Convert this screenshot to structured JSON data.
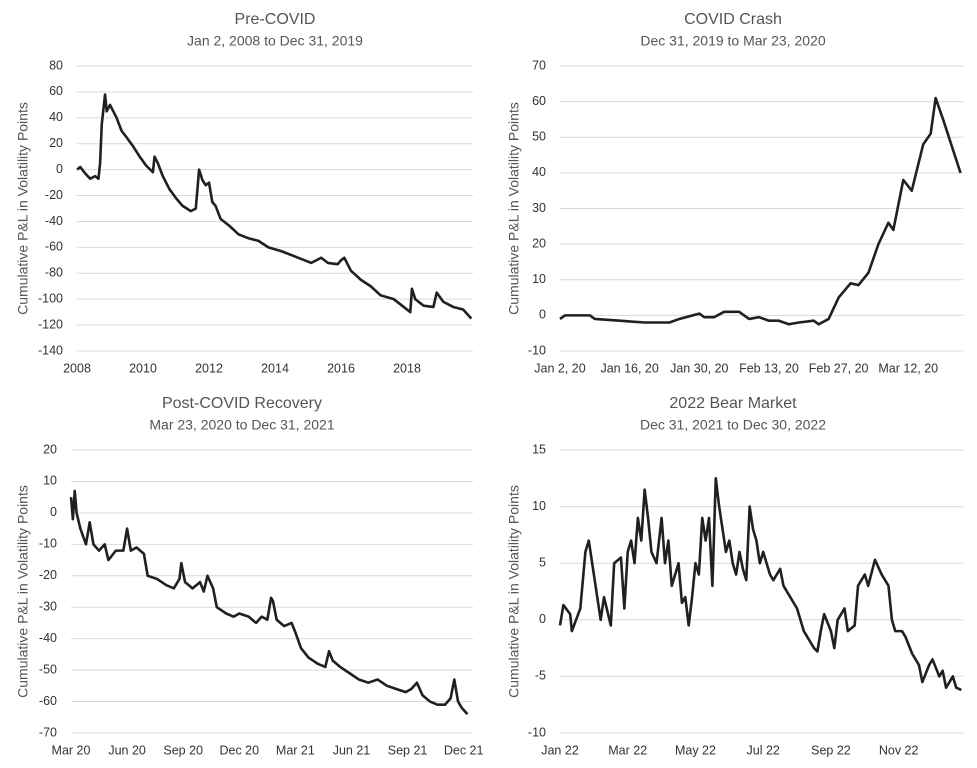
{
  "chart_data": [
    {
      "type": "line",
      "title": "Pre-COVID",
      "subtitle": "Jan 2, 2008 to Dec 31, 2019",
      "y_label": "Cumulative P&L in Volatility Points",
      "color": "#231f20",
      "grid": true,
      "xlim": [
        2008,
        2020
      ],
      "xticks": [
        2008,
        2010,
        2012,
        2014,
        2016,
        2018
      ],
      "ylim": [
        -140,
        80
      ],
      "yticks": [
        -140,
        -120,
        -100,
        -80,
        -60,
        -40,
        -20,
        0,
        20,
        40,
        60,
        80
      ],
      "x": [
        2008.0,
        2008.1,
        2008.25,
        2008.4,
        2008.55,
        2008.65,
        2008.7,
        2008.75,
        2008.85,
        2008.9,
        2009.0,
        2009.1,
        2009.2,
        2009.35,
        2009.5,
        2009.7,
        2009.9,
        2010.1,
        2010.3,
        2010.35,
        2010.45,
        2010.6,
        2010.8,
        2011.0,
        2011.2,
        2011.45,
        2011.6,
        2011.7,
        2011.8,
        2011.9,
        2012.0,
        2012.1,
        2012.2,
        2012.35,
        2012.6,
        2012.9,
        2013.2,
        2013.5,
        2013.8,
        2014.2,
        2014.6,
        2014.9,
        2015.1,
        2015.4,
        2015.6,
        2015.9,
        2016.0,
        2016.1,
        2016.3,
        2016.6,
        2016.9,
        2017.2,
        2017.6,
        2017.9,
        2018.1,
        2018.15,
        2018.25,
        2018.5,
        2018.8,
        2018.9,
        2019.1,
        2019.4,
        2019.7,
        2019.95
      ],
      "values": [
        0,
        2,
        -3,
        -7,
        -5,
        -7,
        5,
        35,
        58,
        45,
        50,
        45,
        40,
        30,
        25,
        18,
        10,
        3,
        -2,
        10,
        5,
        -5,
        -15,
        -22,
        -28,
        -32,
        -30,
        0,
        -8,
        -12,
        -10,
        -25,
        -28,
        -38,
        -43,
        -50,
        -53,
        -55,
        -60,
        -63,
        -67,
        -70,
        -72,
        -68,
        -72,
        -73,
        -70,
        -68,
        -78,
        -85,
        -90,
        -97,
        -100,
        -106,
        -110,
        -92,
        -100,
        -105,
        -106,
        -95,
        -102,
        -106,
        -108,
        -115
      ]
    },
    {
      "type": "line",
      "title": "COVID Crash",
      "subtitle": "Dec 31, 2019 to Mar 23, 2020",
      "y_label": "Cumulative P&L in Volatility Points",
      "color": "#231f20",
      "grid": true,
      "xlim": [
        0,
        81
      ],
      "xticks": [
        {
          "value": 0,
          "label": "Jan 2, 20"
        },
        {
          "value": 14,
          "label": "Jan 16, 20"
        },
        {
          "value": 28,
          "label": "Jan 30, 20"
        },
        {
          "value": 42,
          "label": "Feb 13, 20"
        },
        {
          "value": 56,
          "label": "Feb 27, 20"
        },
        {
          "value": 70,
          "label": "Mar 12, 20"
        }
      ],
      "ylim": [
        -10,
        70
      ],
      "yticks": [
        -10,
        0,
        10,
        20,
        30,
        40,
        50,
        60,
        70
      ],
      "x": [
        0,
        1,
        6,
        7,
        12,
        17,
        22,
        24,
        28,
        29,
        31,
        33,
        36,
        38,
        40,
        42,
        44,
        46,
        48,
        51,
        52,
        54,
        56,
        58.4,
        60,
        62,
        64,
        66,
        67,
        69,
        70.7,
        73,
        74.5,
        75.5,
        77,
        80.5
      ],
      "values": [
        -1,
        0,
        0,
        -1,
        -1.5,
        -2,
        -2,
        -1,
        0.5,
        -0.5,
        -0.5,
        1,
        1,
        -1,
        -0.5,
        -1.5,
        -1.5,
        -2.5,
        -2,
        -1.5,
        -2.5,
        -1,
        5,
        9,
        8.5,
        12,
        20,
        26,
        24,
        38,
        35,
        48,
        51,
        61,
        55,
        40
      ]
    },
    {
      "type": "line",
      "title": "Post-COVID Recovery",
      "subtitle": "Mar 23, 2020 to Dec 31, 2021",
      "y_label": "Cumulative P&L in Volatility Points",
      "color": "#231f20",
      "grid": true,
      "xlim": [
        0,
        21.5
      ],
      "xticks": [
        {
          "value": 0,
          "label": "Mar 20"
        },
        {
          "value": 3,
          "label": "Jun 20"
        },
        {
          "value": 6,
          "label": "Sep 20"
        },
        {
          "value": 9,
          "label": "Dec 20"
        },
        {
          "value": 12,
          "label": "Mar 21"
        },
        {
          "value": 15,
          "label": "Jun 21"
        },
        {
          "value": 18,
          "label": "Sep 21"
        },
        {
          "value": 21,
          "label": "Dec 21"
        }
      ],
      "ylim": [
        -70,
        20
      ],
      "yticks": [
        -70,
        -60,
        -50,
        -40,
        -30,
        -20,
        -10,
        0,
        10,
        20
      ],
      "x": [
        0,
        0.1,
        0.2,
        0.3,
        0.5,
        0.8,
        1.0,
        1.2,
        1.5,
        1.8,
        2.0,
        2.4,
        2.8,
        3.0,
        3.2,
        3.5,
        3.9,
        4.1,
        4.6,
        5.1,
        5.5,
        5.8,
        5.9,
        6.1,
        6.5,
        6.9,
        7.1,
        7.3,
        7.6,
        7.8,
        8.3,
        8.7,
        9.0,
        9.5,
        9.9,
        10.2,
        10.5,
        10.7,
        10.8,
        11.0,
        11.4,
        11.8,
        12.0,
        12.3,
        12.7,
        13.2,
        13.6,
        13.8,
        14.0,
        14.4,
        14.9,
        15.4,
        15.9,
        16.4,
        16.9,
        17.4,
        17.9,
        18.2,
        18.5,
        18.8,
        19.2,
        19.6,
        20.0,
        20.3,
        20.5,
        20.7,
        20.9,
        21.2
      ],
      "values": [
        5,
        -2,
        7,
        0,
        -5,
        -10,
        -3,
        -10,
        -12,
        -10,
        -15,
        -12,
        -12,
        -5,
        -12,
        -11,
        -13,
        -20,
        -21,
        -23,
        -24,
        -21,
        -16,
        -22,
        -24,
        -22,
        -25,
        -20,
        -24,
        -30,
        -32,
        -33,
        -32,
        -33,
        -35,
        -33,
        -34,
        -27,
        -28,
        -34,
        -36,
        -35,
        -38,
        -43,
        -46,
        -48,
        -49,
        -44,
        -47,
        -49,
        -51,
        -53,
        -54,
        -53,
        -55,
        -56,
        -57,
        -56,
        -54,
        -58,
        -60,
        -61,
        -61,
        -59,
        -53,
        -60,
        -62,
        -64
      ]
    },
    {
      "type": "line",
      "title": "2022 Bear Market",
      "subtitle": "Dec 31, 2021 to Dec 30, 2022",
      "y_label": "Cumulative P&L in Volatility Points",
      "color": "#231f20",
      "grid": true,
      "xlim": [
        0,
        11.9
      ],
      "xticks": [
        {
          "value": 0,
          "label": "Jan 22"
        },
        {
          "value": 2,
          "label": "Mar 22"
        },
        {
          "value": 4,
          "label": "May 22"
        },
        {
          "value": 6,
          "label": "Jul 22"
        },
        {
          "value": 8,
          "label": "Sep 22"
        },
        {
          "value": 10,
          "label": "Nov 22"
        }
      ],
      "ylim": [
        -10,
        15
      ],
      "yticks": [
        -10,
        -5,
        0,
        5,
        10,
        15
      ],
      "x": [
        0,
        0.1,
        0.3,
        0.35,
        0.6,
        0.75,
        0.85,
        1.05,
        1.2,
        1.3,
        1.5,
        1.6,
        1.8,
        1.9,
        2.0,
        2.1,
        2.2,
        2.3,
        2.4,
        2.5,
        2.6,
        2.7,
        2.85,
        3.0,
        3.1,
        3.2,
        3.3,
        3.5,
        3.6,
        3.7,
        3.8,
        3.9,
        4.0,
        4.1,
        4.2,
        4.3,
        4.4,
        4.5,
        4.6,
        4.7,
        4.8,
        4.9,
        5.0,
        5.1,
        5.2,
        5.3,
        5.4,
        5.5,
        5.6,
        5.7,
        5.8,
        5.9,
        6.0,
        6.2,
        6.3,
        6.5,
        6.6,
        6.8,
        7.0,
        7.2,
        7.3,
        7.5,
        7.6,
        7.7,
        7.8,
        8.0,
        8.1,
        8.2,
        8.4,
        8.5,
        8.7,
        8.8,
        9.0,
        9.1,
        9.3,
        9.5,
        9.7,
        9.8,
        9.9,
        10.1,
        10.2,
        10.4,
        10.6,
        10.7,
        10.9,
        11.0,
        11.2,
        11.3,
        11.4,
        11.6,
        11.7,
        11.85
      ],
      "values": [
        -0.5,
        1.3,
        0.5,
        -1,
        1,
        6,
        7,
        3,
        0,
        2,
        -0.5,
        5,
        5.5,
        1,
        6,
        7,
        5,
        9,
        7,
        11.5,
        9,
        6,
        5,
        9,
        5,
        7,
        3,
        5,
        1.5,
        2,
        -0.5,
        2,
        5,
        4,
        9,
        7,
        9,
        3,
        12.5,
        10,
        8,
        6,
        7,
        5,
        4,
        6,
        4.5,
        3.5,
        10,
        8,
        7,
        5,
        6,
        4,
        3.5,
        4.5,
        3,
        2,
        1,
        -1,
        -1.5,
        -2.5,
        -2.8,
        -1,
        0.5,
        -1,
        -2.5,
        0,
        1,
        -1,
        -0.5,
        3,
        4,
        3,
        5.3,
        4,
        3,
        0,
        -1,
        -1,
        -1.5,
        -3,
        -4,
        -5.5,
        -4,
        -3.5,
        -5,
        -4.5,
        -6,
        -5,
        -6,
        -6.2
      ]
    }
  ]
}
